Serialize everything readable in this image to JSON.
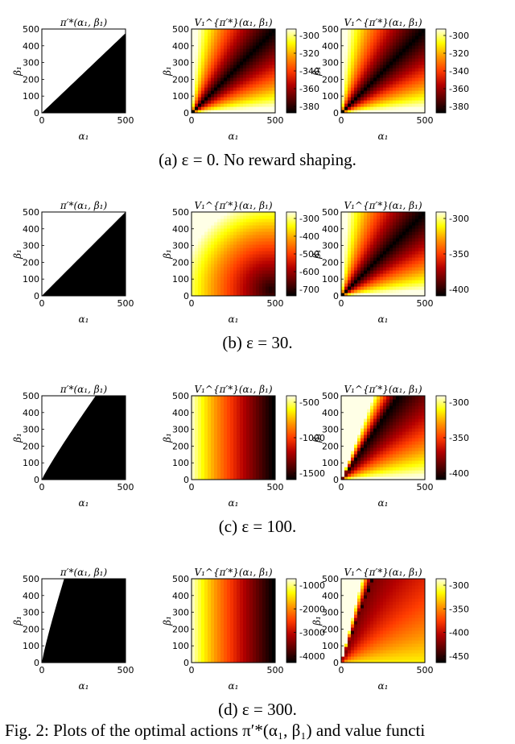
{
  "colors": {
    "white_region": "#ffffff",
    "black_region": "#000000",
    "colormap": [
      "#000000",
      "#5a0000",
      "#b40000",
      "#ff3c00",
      "#ff9600",
      "#ffff00",
      "#ffffe6"
    ]
  },
  "rows": [
    {
      "caption": "(a) ε = 0. No reward shaping.",
      "panels": [
        {
          "title": "π′*(α₁, β₁)",
          "type": "policy",
          "boundary_slope": 0.95,
          "boundary_power": 1.0
        },
        {
          "title": "V₁^{π′*}(α₁, β₁)",
          "type": "value-diag",
          "colorbar_ticks": [
            "-300",
            "-320",
            "-340",
            "-360",
            "-380"
          ]
        },
        {
          "title": "V₁^{π′*}(α₁, β₁)",
          "type": "value-diag",
          "colorbar_ticks": [
            "-300",
            "-320",
            "-340",
            "-360",
            "-380"
          ]
        }
      ]
    },
    {
      "caption": "(b) ε = 30.",
      "panels": [
        {
          "title": "π′*(α₁, β₁)",
          "type": "policy",
          "boundary_slope": 1.0,
          "boundary_power": 1.0
        },
        {
          "title": "V₁^{π′*}(α₁, β₁)",
          "type": "value-center",
          "colorbar_ticks": [
            "-300",
            "-400",
            "-500",
            "-600",
            "-700"
          ]
        },
        {
          "title": "V₁^{π′*}(α₁, β₁)",
          "type": "value-diag",
          "colorbar_ticks": [
            "-300",
            "-350",
            "-400"
          ]
        }
      ]
    },
    {
      "caption": "(c) ε = 100.",
      "panels": [
        {
          "title": "π′*(α₁, β₁)",
          "type": "policy",
          "boundary_slope": 1.5,
          "boundary_power": 0.92
        },
        {
          "title": "V₁^{π′*}(α₁, β₁)",
          "type": "value-horizontal",
          "colorbar_ticks": [
            "-500",
            "-1000",
            "-1500"
          ]
        },
        {
          "title": "V₁^{π′*}(α₁, β₁)",
          "type": "value-diag-steep",
          "colorbar_ticks": [
            "-300",
            "-350",
            "-400"
          ]
        }
      ]
    },
    {
      "caption": "(d) ε = 300.",
      "panels": [
        {
          "title": "π′*(α₁, β₁)",
          "type": "policy",
          "boundary_slope": 3.2,
          "boundary_power": 0.88
        },
        {
          "title": "V₁^{π′*}(α₁, β₁)",
          "type": "value-horizontal",
          "colorbar_ticks": [
            "-1000",
            "-2000",
            "-3000",
            "-4000"
          ]
        },
        {
          "title": "V₁^{π′*}(α₁, β₁)",
          "type": "value-diag-steeper",
          "colorbar_ticks": [
            "-300",
            "-350",
            "-400",
            "-450"
          ]
        }
      ]
    }
  ],
  "figure_caption": "Fig. 2: Plots of the optimal actions π′*(α₁, β₁) and value functi",
  "chart_data": [
    {
      "type": "heatmap",
      "title": "π′*(α₁, β₁)",
      "xlabel": "α₁",
      "ylabel": "β₁",
      "xlim": [
        0,
        500
      ],
      "ylim": [
        0,
        500
      ],
      "x_ticks": [
        "0",
        "500"
      ],
      "y_ticks": [
        "0",
        "100",
        "200",
        "300",
        "400",
        "500"
      ]
    }
  ]
}
